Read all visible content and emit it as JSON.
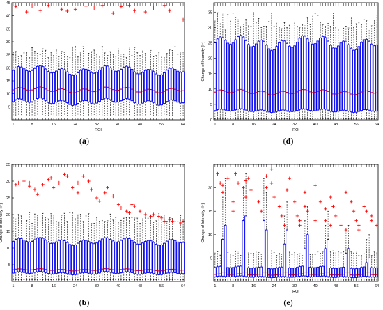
{
  "figure": {
    "colors": {
      "box": "#0000ee",
      "median": "#cc0033",
      "whisker": "#000000",
      "outlier": "#ff0000",
      "background": "#ffffff"
    }
  },
  "chart_data": [
    {
      "panel": "a",
      "caption": "(a)",
      "caption_letter": "a",
      "type": "box",
      "xlabel": "ROI",
      "ylabel": "",
      "xticks": [
        "1",
        "8",
        "16",
        "24",
        "32",
        "40",
        "48",
        "56",
        "64"
      ],
      "yticks": [
        "5",
        "10",
        "15",
        "20",
        "25",
        "30",
        "35",
        "40",
        "45"
      ],
      "ylim": [
        0,
        45
      ],
      "n_boxes": 64,
      "q1_base": 7,
      "q3_base": 19,
      "median_base": 11.5,
      "whisker_low": 1.5,
      "whisker_high_base": 26,
      "outliers_y": [
        43.5,
        41.5,
        43.8,
        42,
        44,
        42.5,
        41.8,
        42.5,
        43.7,
        43,
        44,
        41,
        43.5,
        44,
        42,
        41.5,
        43,
        44,
        42,
        38.5
      ]
    },
    {
      "panel": "d",
      "caption": "(d)",
      "caption_letter": "d",
      "type": "box",
      "xlabel": "ROI",
      "ylabel": "Change of Intensity (I⁻)",
      "xticks": [
        "1",
        "8",
        "16",
        "24",
        "32",
        "40",
        "48",
        "56",
        "64"
      ],
      "yticks": [
        "0",
        "5",
        "10",
        "15",
        "20",
        "25",
        "30",
        "35"
      ],
      "ylim": [
        0,
        38
      ],
      "n_boxes": 64,
      "q1_base": 3,
      "q3_base": 25,
      "median_base": 9,
      "whisker_low": 0.3,
      "whisker_high_base": 32,
      "outliers_y": []
    },
    {
      "panel": "b",
      "caption": "(b)",
      "caption_letter": "b",
      "type": "box",
      "xlabel": "",
      "ylabel": "Change of Intensity (I⁻)",
      "xticks": [
        "1",
        "8",
        "16",
        "24",
        "32",
        "40",
        "48",
        "56",
        "64"
      ],
      "yticks": [
        "5",
        "10",
        "15",
        "20",
        "25",
        "30",
        "35"
      ],
      "ylim": [
        0,
        35
      ],
      "n_boxes": 64,
      "q1_base": 2.5,
      "q3_base": 12,
      "median_base": 3.5,
      "whisker_low": 0.5,
      "whisker_high_base": 19,
      "outliers_y": [
        29,
        29.5,
        30,
        29.5,
        28.5,
        27.5,
        26,
        29,
        30.5,
        31,
        28,
        29.5,
        32,
        31.5,
        28,
        26.5,
        29.5,
        31.5,
        30,
        27.5,
        25,
        24,
        26.5,
        28,
        25.5,
        23,
        22,
        21,
        20.5,
        23,
        22.5,
        21,
        20,
        19.5,
        20,
        19.5,
        19,
        18,
        18.5,
        18,
        17.5,
        18
      ]
    },
    {
      "panel": "e",
      "caption": "(e)",
      "caption_letter": "e",
      "type": "box",
      "xlabel": "ROI",
      "ylabel": "Change of Intensity (I⁻)",
      "xticks": [
        "1",
        "8",
        "16",
        "24",
        "32",
        "40",
        "48",
        "56",
        "64"
      ],
      "yticks": [
        "5",
        "10",
        "15",
        "20"
      ],
      "ylim": [
        0,
        25
      ],
      "n_boxes": 64,
      "q1_base": 1,
      "q3_base": 3,
      "median_base": 1.5,
      "whisker_low": 0.3,
      "whisker_high_base": 6,
      "peaks": [
        {
          "roi": 4,
          "q3": 9,
          "wh": 18
        },
        {
          "roi": 5,
          "q3": 12,
          "wh": 22
        },
        {
          "roi": 12,
          "q3": 13,
          "wh": 20
        },
        {
          "roi": 13,
          "q3": 14,
          "wh": 23
        },
        {
          "roi": 20,
          "q3": 13,
          "wh": 22
        },
        {
          "roi": 21,
          "q3": 11,
          "wh": 19
        },
        {
          "roi": 28,
          "q3": 8,
          "wh": 14
        },
        {
          "roi": 29,
          "q3": 11,
          "wh": 17
        },
        {
          "roi": 36,
          "q3": 7,
          "wh": 13
        },
        {
          "roi": 37,
          "q3": 10,
          "wh": 16
        },
        {
          "roi": 44,
          "q3": 7,
          "wh": 12
        },
        {
          "roi": 45,
          "q3": 9,
          "wh": 15
        },
        {
          "roi": 52,
          "q3": 6,
          "wh": 11
        },
        {
          "roi": 53,
          "q3": 7,
          "wh": 12
        },
        {
          "roi": 60,
          "q3": 4,
          "wh": 9
        },
        {
          "roi": 61,
          "q3": 5,
          "wh": 10
        }
      ],
      "outliers_y": [
        23,
        21,
        20.5,
        19,
        22,
        17,
        15,
        23,
        21,
        20,
        18,
        21.5,
        22,
        19.5,
        17,
        15,
        20,
        22.5,
        24,
        21,
        18,
        16,
        14,
        12,
        22,
        19.5,
        17,
        14,
        13,
        12,
        19,
        16,
        15,
        13,
        20.5,
        17,
        15.5,
        13,
        12,
        18,
        16,
        14,
        12,
        11,
        19,
        17,
        15,
        13,
        12,
        11,
        16,
        15,
        14,
        13,
        12
      ]
    }
  ]
}
